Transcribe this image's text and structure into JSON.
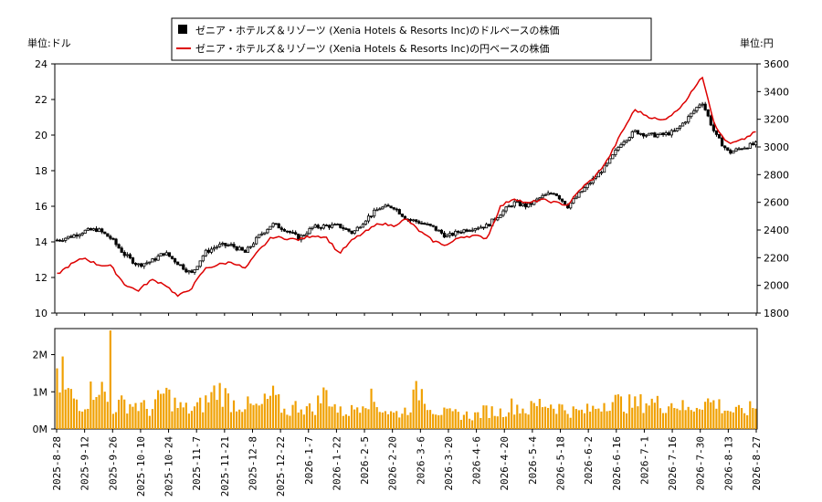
{
  "chart_data": [
    {
      "type": "candlestick-line",
      "legend": {
        "placement": "top-center",
        "entries": [
          {
            "name": "ゼニア・ホテルズ＆リゾーツ (Xenia Hotels & Resorts Inc)のドルベースの株価",
            "color": "#000000",
            "marker": "square"
          },
          {
            "name": "ゼニア・ホテルズ＆リゾーツ (Xenia Hotels & Resorts Inc)の円ベースの株価",
            "color": "#dd0000",
            "marker": "line"
          }
        ]
      },
      "left_axis": {
        "unit_label": "単位:ドル",
        "ylim": [
          10,
          24
        ],
        "ticks": [
          "10",
          "12",
          "14",
          "16",
          "18",
          "20",
          "22",
          "24"
        ]
      },
      "right_axis": {
        "unit_label": "単位:円",
        "ylim": [
          1800,
          3600
        ],
        "ticks": [
          "1800",
          "2000",
          "2200",
          "2400",
          "2600",
          "2800",
          "3000",
          "3200",
          "3400",
          "3600"
        ]
      },
      "grid": false,
      "usd_weekly": [
        {
          "date": "2025-08-28",
          "v": 14.1
        },
        {
          "date": "2025-09-04",
          "v": 14.3
        },
        {
          "date": "2025-09-11",
          "v": 14.6
        },
        {
          "date": "2025-09-18",
          "v": 14.7
        },
        {
          "date": "2025-09-25",
          "v": 14.2
        },
        {
          "date": "2025-10-02",
          "v": 13.3
        },
        {
          "date": "2025-10-09",
          "v": 12.7
        },
        {
          "date": "2025-10-16",
          "v": 12.9
        },
        {
          "date": "2025-10-23",
          "v": 13.4
        },
        {
          "date": "2025-10-30",
          "v": 12.8
        },
        {
          "date": "2025-11-06",
          "v": 12.2
        },
        {
          "date": "2025-11-13",
          "v": 13.4
        },
        {
          "date": "2025-11-20",
          "v": 13.8
        },
        {
          "date": "2025-11-27",
          "v": 13.8
        },
        {
          "date": "2025-12-04",
          "v": 13.4
        },
        {
          "date": "2025-12-11",
          "v": 14.3
        },
        {
          "date": "2025-12-18",
          "v": 15.0
        },
        {
          "date": "2025-12-25",
          "v": 14.7
        },
        {
          "date": "2026-01-01",
          "v": 14.2
        },
        {
          "date": "2026-01-08",
          "v": 14.8
        },
        {
          "date": "2026-01-15",
          "v": 14.9
        },
        {
          "date": "2026-01-22",
          "v": 14.9
        },
        {
          "date": "2026-01-29",
          "v": 14.5
        },
        {
          "date": "2026-02-05",
          "v": 15.3
        },
        {
          "date": "2026-02-12",
          "v": 15.9
        },
        {
          "date": "2026-02-19",
          "v": 16.0
        },
        {
          "date": "2026-02-26",
          "v": 15.3
        },
        {
          "date": "2026-03-05",
          "v": 15.1
        },
        {
          "date": "2026-03-12",
          "v": 14.8
        },
        {
          "date": "2026-03-19",
          "v": 14.3
        },
        {
          "date": "2026-03-26",
          "v": 14.6
        },
        {
          "date": "2026-04-02",
          "v": 14.8
        },
        {
          "date": "2026-04-09",
          "v": 14.9
        },
        {
          "date": "2026-04-16",
          "v": 15.6
        },
        {
          "date": "2026-04-23",
          "v": 16.2
        },
        {
          "date": "2026-04-30",
          "v": 16.0
        },
        {
          "date": "2026-05-07",
          "v": 16.5
        },
        {
          "date": "2026-05-14",
          "v": 16.8
        },
        {
          "date": "2026-05-21",
          "v": 16.0
        },
        {
          "date": "2026-05-28",
          "v": 16.8
        },
        {
          "date": "2026-06-04",
          "v": 17.6
        },
        {
          "date": "2026-06-11",
          "v": 18.4
        },
        {
          "date": "2026-06-18",
          "v": 19.6
        },
        {
          "date": "2026-06-25",
          "v": 20.2
        },
        {
          "date": "2026-07-02",
          "v": 20.0
        },
        {
          "date": "2026-07-09",
          "v": 20.0
        },
        {
          "date": "2026-07-16",
          "v": 20.2
        },
        {
          "date": "2026-07-23",
          "v": 21.0
        },
        {
          "date": "2026-07-30",
          "v": 21.9
        },
        {
          "date": "2026-08-06",
          "v": 20.0
        },
        {
          "date": "2026-08-13",
          "v": 19.0
        },
        {
          "date": "2026-08-20",
          "v": 19.3
        },
        {
          "date": "2026-08-27",
          "v": 19.5
        }
      ],
      "jpy_weekly": [
        {
          "date": "2025-08-28",
          "v": 2080
        },
        {
          "date": "2025-09-04",
          "v": 2150
        },
        {
          "date": "2025-09-11",
          "v": 2200
        },
        {
          "date": "2025-09-18",
          "v": 2150
        },
        {
          "date": "2025-09-25",
          "v": 2140
        },
        {
          "date": "2025-10-02",
          "v": 2010
        },
        {
          "date": "2025-10-09",
          "v": 1960
        },
        {
          "date": "2025-10-16",
          "v": 2040
        },
        {
          "date": "2025-10-23",
          "v": 2010
        },
        {
          "date": "2025-10-30",
          "v": 1920
        },
        {
          "date": "2025-11-06",
          "v": 1980
        },
        {
          "date": "2025-11-13",
          "v": 2120
        },
        {
          "date": "2025-11-20",
          "v": 2150
        },
        {
          "date": "2025-11-27",
          "v": 2170
        },
        {
          "date": "2025-12-04",
          "v": 2120
        },
        {
          "date": "2025-12-11",
          "v": 2250
        },
        {
          "date": "2025-12-18",
          "v": 2350
        },
        {
          "date": "2025-12-25",
          "v": 2340
        },
        {
          "date": "2026-01-01",
          "v": 2330
        },
        {
          "date": "2026-01-08",
          "v": 2360
        },
        {
          "date": "2026-01-15",
          "v": 2350
        },
        {
          "date": "2026-01-22",
          "v": 2230
        },
        {
          "date": "2026-01-29",
          "v": 2330
        },
        {
          "date": "2026-02-05",
          "v": 2390
        },
        {
          "date": "2026-02-12",
          "v": 2450
        },
        {
          "date": "2026-02-19",
          "v": 2430
        },
        {
          "date": "2026-02-26",
          "v": 2480
        },
        {
          "date": "2026-03-05",
          "v": 2390
        },
        {
          "date": "2026-03-12",
          "v": 2320
        },
        {
          "date": "2026-03-19",
          "v": 2290
        },
        {
          "date": "2026-03-26",
          "v": 2350
        },
        {
          "date": "2026-04-02",
          "v": 2360
        },
        {
          "date": "2026-04-09",
          "v": 2340
        },
        {
          "date": "2026-04-16",
          "v": 2570
        },
        {
          "date": "2026-04-23",
          "v": 2630
        },
        {
          "date": "2026-04-30",
          "v": 2590
        },
        {
          "date": "2026-05-07",
          "v": 2620
        },
        {
          "date": "2026-05-14",
          "v": 2600
        },
        {
          "date": "2026-05-21",
          "v": 2580
        },
        {
          "date": "2026-05-28",
          "v": 2700
        },
        {
          "date": "2026-06-04",
          "v": 2780
        },
        {
          "date": "2026-06-11",
          "v": 2910
        },
        {
          "date": "2026-06-18",
          "v": 3100
        },
        {
          "date": "2026-06-25",
          "v": 3270
        },
        {
          "date": "2026-07-02",
          "v": 3220
        },
        {
          "date": "2026-07-09",
          "v": 3190
        },
        {
          "date": "2026-07-16",
          "v": 3250
        },
        {
          "date": "2026-07-23",
          "v": 3360
        },
        {
          "date": "2026-07-30",
          "v": 3520
        },
        {
          "date": "2026-08-06",
          "v": 3140
        },
        {
          "date": "2026-08-13",
          "v": 3020
        },
        {
          "date": "2026-08-20",
          "v": 3050
        },
        {
          "date": "2026-08-27",
          "v": 3110
        }
      ]
    },
    {
      "type": "bar",
      "series_color": "#f0a000",
      "ylim": [
        0,
        2700000
      ],
      "ticks": [
        "0M",
        "1M",
        "2M"
      ],
      "x_ticks": [
        "2025-8-28",
        "2025-9-12",
        "2025-9-26",
        "2025-10-10",
        "2025-10-24",
        "2025-11-7",
        "2025-11-21",
        "2025-12-8",
        "2025-12-22",
        "2026-1-7",
        "2026-1-22",
        "2026-2-5",
        "2026-2-20",
        "2026-3-6",
        "2026-3-20",
        "2026-4-6",
        "2026-4-20",
        "2026-5-4",
        "2026-5-18",
        "2026-6-2",
        "2026-6-16",
        "2026-7-1",
        "2026-7-16",
        "2026-7-30",
        "2026-8-13",
        "2026-8-27"
      ],
      "volume_weekly_avg": [
        1200000,
        900000,
        650000,
        1300000,
        550000,
        700000,
        650000,
        500000,
        1000000,
        600000,
        500000,
        700000,
        1100000,
        700000,
        650000,
        550000,
        900000,
        450000,
        650000,
        500000,
        1000000,
        450000,
        500000,
        900000,
        600000,
        400000,
        500000,
        1100000,
        550000,
        400000,
        400000,
        350000,
        500000,
        450000,
        650000,
        500000,
        700000,
        650000,
        500000,
        450000,
        550000,
        800000,
        700000,
        650000,
        750000,
        650000,
        700000,
        500000,
        750000,
        700000,
        500000,
        450000,
        600000
      ]
    }
  ]
}
